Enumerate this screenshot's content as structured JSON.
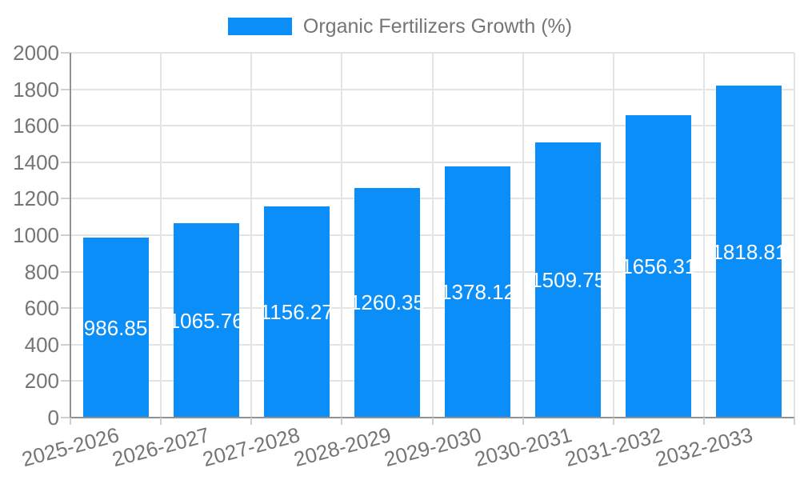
{
  "legend": {
    "label": "Organic Fertilizers Growth (%)"
  },
  "colors": {
    "bar": "#0b8ef8",
    "text": "#757575",
    "grid": "#e4e4e4",
    "axis": "#929292",
    "tick": "#cfcfcf",
    "value_label": "#ffffff"
  },
  "chart_data": {
    "type": "bar",
    "title": "Organic Fertilizers Growth (%)",
    "categories": [
      "2025-2026",
      "2026-2027",
      "2027-2028",
      "2028-2029",
      "2029-2030",
      "2030-2031",
      "2031-2032",
      "2032-2033"
    ],
    "values": [
      986.85,
      1065.76,
      1156.27,
      1260.35,
      1378.12,
      1509.75,
      1656.31,
      1818.81
    ],
    "value_label_format": "2-decimals",
    "value_label_position": "inside-center",
    "xlabel": "",
    "ylabel": "",
    "ylim": [
      0,
      2000
    ],
    "yticks": [
      0,
      200,
      400,
      600,
      800,
      1000,
      1200,
      1400,
      1600,
      1800,
      2000
    ],
    "grid": true,
    "legend_position": "top-center",
    "xtick_rotation_deg": -15
  }
}
